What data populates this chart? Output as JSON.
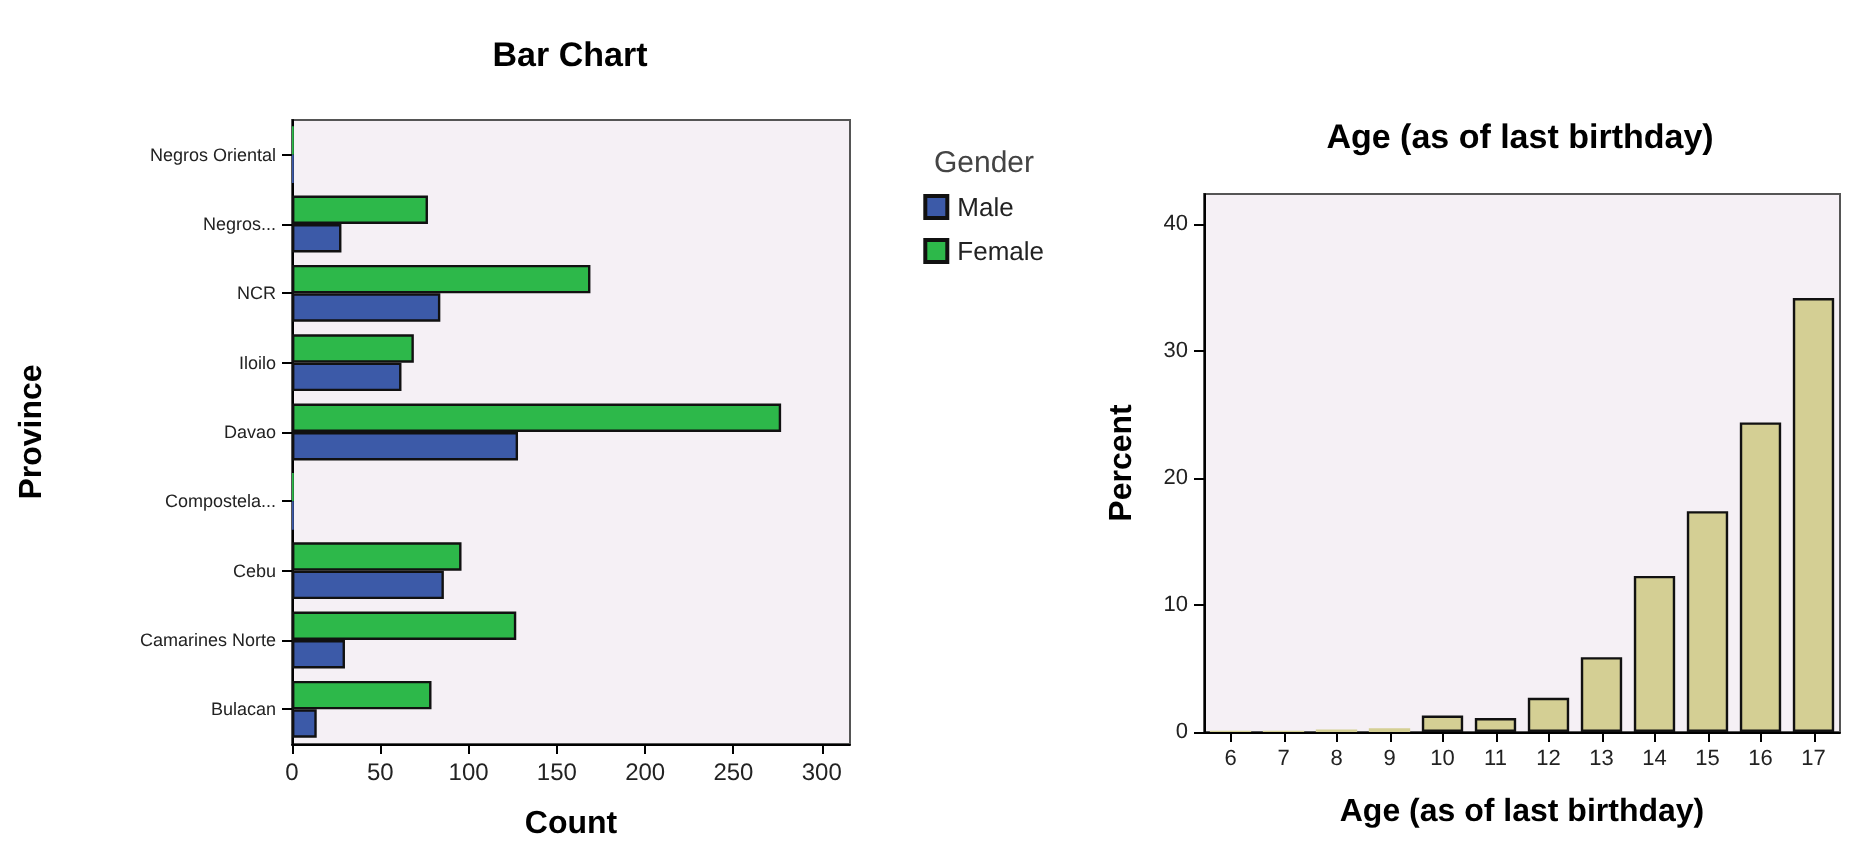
{
  "chart_data": [
    {
      "type": "bar",
      "title": "Bar Chart",
      "xlabel": "Count",
      "ylabel": "Province",
      "legend_title": "Gender",
      "orientation": "horizontal",
      "categories": [
        "Negros Oriental",
        "Negros...",
        "NCR",
        "Iloilo",
        "Davao",
        "Compostela...",
        "Cebu",
        "Camarines Norte",
        "Bulacan"
      ],
      "series": [
        {
          "name": "Male",
          "color": "#3c5aa8",
          "values": [
            1,
            28,
            84,
            62,
            128,
            1,
            86,
            30,
            14
          ]
        },
        {
          "name": "Female",
          "color": "#2db84a",
          "values": [
            1,
            77,
            169,
            69,
            277,
            1,
            96,
            127,
            79
          ]
        }
      ],
      "xlim": [
        0,
        316
      ],
      "xticks": [
        0,
        50,
        100,
        150,
        200,
        250,
        300
      ],
      "legend": "right",
      "grid": false
    },
    {
      "type": "bar",
      "title": "Age (as of last birthday)",
      "xlabel": "Age (as of last birthday)",
      "ylabel": "Percent",
      "categories": [
        "6",
        "7",
        "8",
        "9",
        "10",
        "11",
        "12",
        "13",
        "14",
        "15",
        "16",
        "17"
      ],
      "values": [
        0.1,
        0.1,
        0.2,
        0.3,
        1.3,
        1.1,
        2.7,
        5.9,
        12.3,
        17.4,
        24.4,
        34.2
      ],
      "color": "#d4cf94",
      "ylim": [
        0,
        42.4
      ],
      "yticks": [
        0,
        10,
        20,
        30,
        40
      ],
      "grid": false
    }
  ]
}
